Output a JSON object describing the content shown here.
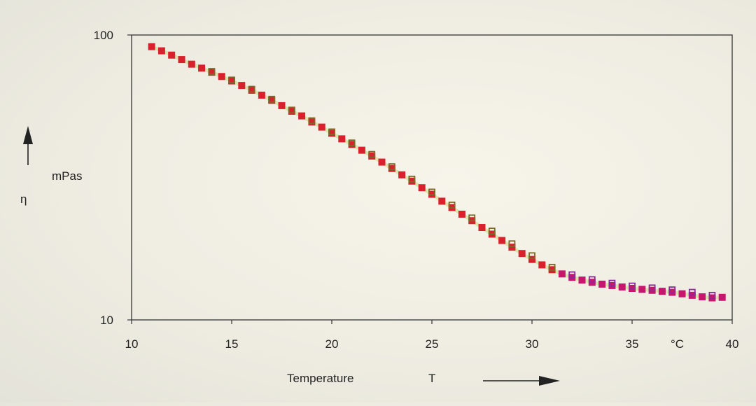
{
  "chart_data": {
    "type": "scatter",
    "title": "",
    "xlabel": "Temperature",
    "xsymbol": "T",
    "xunit": "°C",
    "ylabel_unit": "mPas",
    "ysymbol": "η",
    "xlim": [
      10,
      40
    ],
    "ylim": [
      10,
      100
    ],
    "yscale": "log",
    "grid": false,
    "x_ticks": [
      "10",
      "15",
      "20",
      "25",
      "30",
      "35",
      "40"
    ],
    "y_ticks": [
      "10",
      "100"
    ],
    "colors": {
      "filled_red": "#d9212e",
      "filled_magenta": "#c8156e",
      "hollow_olive": "#7a6a2a",
      "hollow_purple": "#8a2a9a",
      "fit_line": "#c9d97a",
      "axis": "#333333"
    },
    "series": [
      {
        "marker": "filled-square",
        "color": "#d9212e",
        "points": [
          [
            11.0,
            91
          ],
          [
            11.5,
            88
          ],
          [
            12.0,
            85
          ],
          [
            12.5,
            82
          ],
          [
            13.0,
            79
          ],
          [
            13.5,
            76.5
          ],
          [
            14.0,
            74
          ],
          [
            14.5,
            71.5
          ],
          [
            15.0,
            69
          ],
          [
            15.5,
            66.5
          ],
          [
            16.0,
            64
          ],
          [
            16.5,
            61.5
          ],
          [
            17.0,
            59
          ],
          [
            17.5,
            56.5
          ],
          [
            18.0,
            54
          ],
          [
            18.5,
            52
          ],
          [
            19.0,
            49.5
          ],
          [
            19.5,
            47.5
          ],
          [
            20.0,
            45.2
          ],
          [
            20.5,
            43.2
          ],
          [
            21.0,
            41.3
          ],
          [
            21.5,
            39.4
          ],
          [
            22.0,
            37.6
          ],
          [
            22.5,
            35.8
          ],
          [
            23.0,
            34.0
          ],
          [
            23.5,
            32.3
          ],
          [
            24.0,
            30.7
          ],
          [
            24.5,
            29.1
          ],
          [
            25.0,
            27.6
          ],
          [
            25.5,
            26.1
          ],
          [
            26.0,
            24.8
          ],
          [
            26.5,
            23.5
          ],
          [
            27.0,
            22.3
          ],
          [
            27.5,
            21.1
          ],
          [
            28.0,
            20.0
          ],
          [
            28.5,
            19.0
          ],
          [
            29.0,
            18.0
          ],
          [
            29.5,
            17.1
          ],
          [
            30.0,
            16.3
          ],
          [
            30.5,
            15.6
          ],
          [
            31.0,
            15.0
          ]
        ]
      },
      {
        "marker": "filled-square",
        "color": "#c8156e",
        "points": [
          [
            31.5,
            14.5
          ],
          [
            32.0,
            14.1
          ],
          [
            32.5,
            13.8
          ],
          [
            33.0,
            13.55
          ],
          [
            33.5,
            13.35
          ],
          [
            34.0,
            13.2
          ],
          [
            34.5,
            13.05
          ],
          [
            35.0,
            12.9
          ],
          [
            35.5,
            12.8
          ],
          [
            36.0,
            12.7
          ],
          [
            36.5,
            12.6
          ],
          [
            37.0,
            12.5
          ],
          [
            37.5,
            12.35
          ],
          [
            38.0,
            12.2
          ],
          [
            38.5,
            12.05
          ],
          [
            39.0,
            11.95
          ],
          [
            39.5,
            12.0
          ]
        ]
      },
      {
        "marker": "hollow-square",
        "color": "#7a6a2a",
        "points": [
          [
            14.0,
            74.5
          ],
          [
            15.0,
            69.5
          ],
          [
            16.0,
            64.5
          ],
          [
            17.0,
            59.5
          ],
          [
            18.0,
            54.5
          ],
          [
            19.0,
            50
          ],
          [
            20.0,
            45.7
          ],
          [
            21.0,
            41.8
          ],
          [
            22.0,
            38.1
          ],
          [
            23.0,
            34.5
          ],
          [
            24.0,
            31.2
          ],
          [
            25.0,
            28.1
          ],
          [
            26.0,
            25.3
          ],
          [
            27.0,
            22.8
          ],
          [
            28.0,
            20.5
          ],
          [
            29.0,
            18.5
          ],
          [
            30.0,
            16.8
          ],
          [
            31.0,
            15.3
          ]
        ]
      },
      {
        "marker": "hollow-square",
        "color": "#8a2a9a",
        "points": [
          [
            32.0,
            14.4
          ],
          [
            33.0,
            13.85
          ],
          [
            34.0,
            13.45
          ],
          [
            35.0,
            13.15
          ],
          [
            36.0,
            12.95
          ],
          [
            37.0,
            12.75
          ],
          [
            38.0,
            12.5
          ],
          [
            39.0,
            12.2
          ]
        ]
      }
    ]
  }
}
